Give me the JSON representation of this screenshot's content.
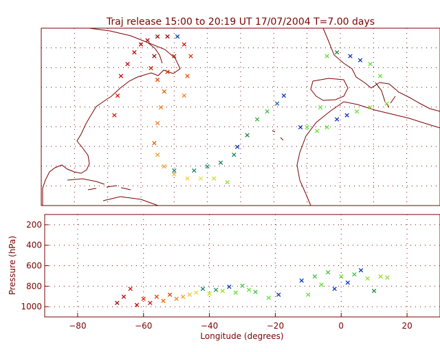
{
  "chart_data": [
    {
      "type": "map-scatter",
      "title": "Traj release 15:00 to 20:19 UT 17/07/2004    T=7.00 days",
      "grid": true,
      "ylim": [
        5,
        50
      ],
      "points": [
        {
          "lon": -68,
          "lat": 28,
          "color": "#e01000"
        },
        {
          "lon": -67,
          "lat": 33,
          "color": "#e01000"
        },
        {
          "lon": -66,
          "lat": 38,
          "color": "#c80000"
        },
        {
          "lon": -64,
          "lat": 41,
          "color": "#c80000"
        },
        {
          "lon": -62,
          "lat": 44,
          "color": "#c00000"
        },
        {
          "lon": -60,
          "lat": 46,
          "color": "#b00000"
        },
        {
          "lon": -58,
          "lat": 47,
          "color": "#a00000"
        },
        {
          "lon": -55,
          "lat": 48,
          "color": "#900000"
        },
        {
          "lon": -52,
          "lat": 48,
          "color": "#8c0000"
        },
        {
          "lon": -49,
          "lat": 48,
          "color": "#0030c0"
        },
        {
          "lon": -56,
          "lat": 43,
          "color": "#a00000"
        },
        {
          "lon": -57,
          "lat": 40,
          "color": "#c02000"
        },
        {
          "lon": -55,
          "lat": 37,
          "color": "#e04000"
        },
        {
          "lon": -53,
          "lat": 34,
          "color": "#e06000"
        },
        {
          "lon": -54,
          "lat": 30,
          "color": "#f08020"
        },
        {
          "lon": -55,
          "lat": 26,
          "color": "#f08020"
        },
        {
          "lon": -56,
          "lat": 21,
          "color": "#e06000"
        },
        {
          "lon": -52,
          "lat": 39,
          "color": "#d03000"
        },
        {
          "lon": -50,
          "lat": 43,
          "color": "#c02000"
        },
        {
          "lon": -47,
          "lat": 46,
          "color": "#d01000"
        },
        {
          "lon": -45,
          "lat": 43,
          "color": "#e03000"
        },
        {
          "lon": -46,
          "lat": 38,
          "color": "#f05000"
        },
        {
          "lon": -47,
          "lat": 33,
          "color": "#f08020"
        },
        {
          "lon": -55,
          "lat": 18,
          "color": "#f0a020"
        },
        {
          "lon": -53,
          "lat": 15,
          "color": "#f0a020"
        },
        {
          "lon": -50,
          "lat": 13,
          "color": "#f0c040"
        },
        {
          "lon": -46,
          "lat": 12,
          "color": "#f0d040"
        },
        {
          "lon": -42,
          "lat": 12,
          "color": "#e8e040"
        },
        {
          "lon": -38,
          "lat": 12,
          "color": "#c0e030"
        },
        {
          "lon": -34,
          "lat": 11,
          "color": "#90e030"
        },
        {
          "lon": -50,
          "lat": 14,
          "color": "#108060"
        },
        {
          "lon": -44,
          "lat": 14,
          "color": "#108060"
        },
        {
          "lon": -40,
          "lat": 15,
          "color": "#208870"
        },
        {
          "lon": -36,
          "lat": 16,
          "color": "#108060"
        },
        {
          "lon": -32,
          "lat": 18,
          "color": "#108060"
        },
        {
          "lon": -31,
          "lat": 20,
          "color": "#0030c0"
        },
        {
          "lon": -28,
          "lat": 23,
          "color": "#208040"
        },
        {
          "lon": -25,
          "lat": 27,
          "color": "#40b040"
        },
        {
          "lon": -22,
          "lat": 29,
          "color": "#40c040"
        },
        {
          "lon": -19,
          "lat": 31,
          "color": "#2060a0"
        },
        {
          "lon": -17,
          "lat": 33,
          "color": "#0030c0"
        },
        {
          "lon": -12,
          "lat": 25,
          "color": "#0030c0"
        },
        {
          "lon": -10,
          "lat": 25,
          "color": "#60e030"
        },
        {
          "lon": -7,
          "lat": 24,
          "color": "#70e030"
        },
        {
          "lon": -4,
          "lat": 25,
          "color": "#60e030"
        },
        {
          "lon": -1,
          "lat": 27,
          "color": "#0030c0"
        },
        {
          "lon": 2,
          "lat": 28,
          "color": "#0030c0"
        },
        {
          "lon": 5,
          "lat": 29,
          "color": "#70e030"
        },
        {
          "lon": 9,
          "lat": 30,
          "color": "#90e030"
        },
        {
          "lon": 14,
          "lat": 31,
          "color": "#90e030"
        },
        {
          "lon": -6,
          "lat": 30,
          "color": "#60e030"
        },
        {
          "lon": -4,
          "lat": 43,
          "color": "#60e030"
        },
        {
          "lon": -1,
          "lat": 44,
          "color": "#208040"
        },
        {
          "lon": 3,
          "lat": 43,
          "color": "#0030c0"
        },
        {
          "lon": 6,
          "lat": 42,
          "color": "#0030c0"
        },
        {
          "lon": 9,
          "lat": 41,
          "color": "#60e030"
        },
        {
          "lon": 12,
          "lat": 38,
          "color": "#60e030"
        }
      ]
    },
    {
      "type": "scatter",
      "xlabel": "Longitude  (degrees)",
      "ylabel": "Pressure  (hPa)",
      "xlim": [
        -90,
        30
      ],
      "ylim": [
        1100,
        100
      ],
      "xticks": [
        -80,
        -60,
        -40,
        -20,
        0,
        20
      ],
      "yticks": [
        200,
        400,
        600,
        800,
        1000
      ],
      "grid": true,
      "points": [
        {
          "x": -68,
          "y": 960,
          "color": "#a00000"
        },
        {
          "x": -66,
          "y": 900,
          "color": "#c00000"
        },
        {
          "x": -64,
          "y": 820,
          "color": "#d01000"
        },
        {
          "x": -62,
          "y": 980,
          "color": "#c00000"
        },
        {
          "x": -60,
          "y": 920,
          "color": "#e02000"
        },
        {
          "x": -58,
          "y": 960,
          "color": "#d01000"
        },
        {
          "x": -56,
          "y": 900,
          "color": "#e04000"
        },
        {
          "x": -54,
          "y": 940,
          "color": "#f06000"
        },
        {
          "x": -52,
          "y": 880,
          "color": "#e04000"
        },
        {
          "x": -50,
          "y": 920,
          "color": "#f08020"
        },
        {
          "x": -48,
          "y": 900,
          "color": "#f0a020"
        },
        {
          "x": -46,
          "y": 880,
          "color": "#f0c040"
        },
        {
          "x": -44,
          "y": 860,
          "color": "#e0e040"
        },
        {
          "x": -42,
          "y": 820,
          "color": "#108060"
        },
        {
          "x": -40,
          "y": 870,
          "color": "#c0e030"
        },
        {
          "x": -38,
          "y": 830,
          "color": "#208870"
        },
        {
          "x": -36,
          "y": 840,
          "color": "#90e030"
        },
        {
          "x": -34,
          "y": 800,
          "color": "#0030c0"
        },
        {
          "x": -32,
          "y": 860,
          "color": "#60e030"
        },
        {
          "x": -30,
          "y": 790,
          "color": "#40c040"
        },
        {
          "x": -28,
          "y": 830,
          "color": "#60e030"
        },
        {
          "x": -26,
          "y": 850,
          "color": "#40c040"
        },
        {
          "x": -22,
          "y": 910,
          "color": "#60e030"
        },
        {
          "x": -19,
          "y": 880,
          "color": "#0030c0"
        },
        {
          "x": -12,
          "y": 740,
          "color": "#0030c0"
        },
        {
          "x": -10,
          "y": 880,
          "color": "#60e030"
        },
        {
          "x": -8,
          "y": 700,
          "color": "#40c040"
        },
        {
          "x": -6,
          "y": 780,
          "color": "#60e030"
        },
        {
          "x": -4,
          "y": 660,
          "color": "#40c040"
        },
        {
          "x": -2,
          "y": 820,
          "color": "#0030c0"
        },
        {
          "x": 0,
          "y": 700,
          "color": "#70e030"
        },
        {
          "x": 2,
          "y": 760,
          "color": "#0030c0"
        },
        {
          "x": 4,
          "y": 680,
          "color": "#40c040"
        },
        {
          "x": 6,
          "y": 640,
          "color": "#0030c0"
        },
        {
          "x": 8,
          "y": 720,
          "color": "#90e030"
        },
        {
          "x": 10,
          "y": 840,
          "color": "#208040"
        },
        {
          "x": 12,
          "y": 700,
          "color": "#90e030"
        },
        {
          "x": 14,
          "y": 710,
          "color": "#90e030"
        }
      ]
    }
  ]
}
